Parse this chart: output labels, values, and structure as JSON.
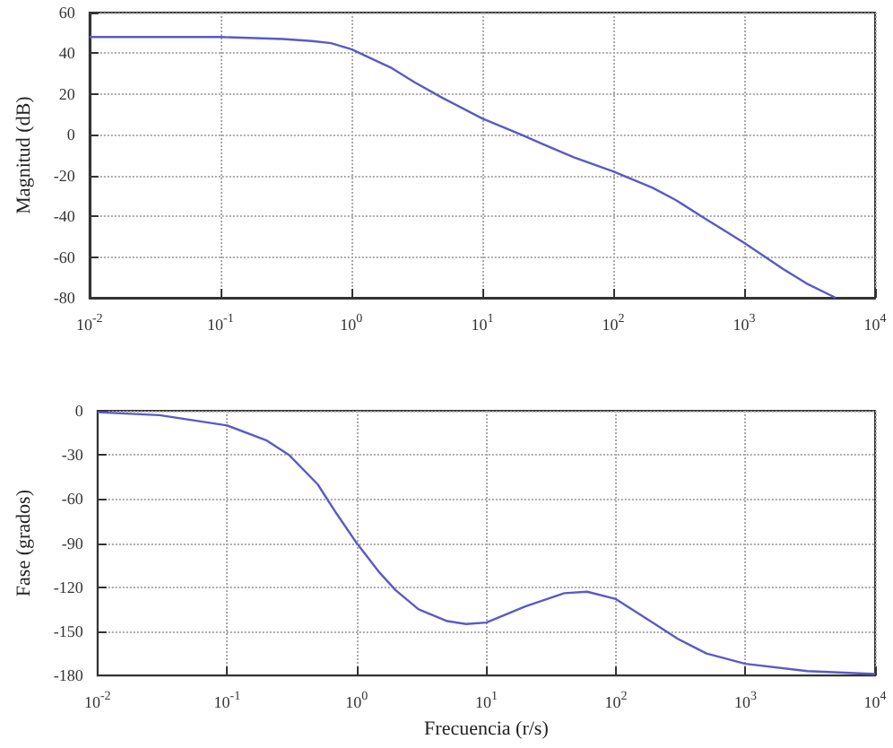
{
  "chart_data": [
    {
      "type": "line",
      "ylabel": "Magnitud (dB)",
      "log": "x",
      "grid": true,
      "marker": "none",
      "line_style": "solid",
      "xlim": [
        0.01,
        10000
      ],
      "ylim": [
        -80,
        60
      ],
      "xticks": [
        {
          "value": 0.01,
          "label": "10$^{-2}$"
        },
        {
          "value": 0.1,
          "label": "10$^{-1}$"
        },
        {
          "value": 1,
          "label": "10$^{0}$"
        },
        {
          "value": 10,
          "label": "10$^{1}$"
        },
        {
          "value": 100,
          "label": "10$^{2}$"
        },
        {
          "value": 1000,
          "label": "10$^{3}$"
        },
        {
          "value": 10000,
          "label": "10$^{4}$"
        }
      ],
      "yticks": [
        -80,
        -60,
        -40,
        -20,
        0,
        20,
        40,
        60
      ],
      "series": [
        {
          "color": "#5a5ac8",
          "x": [
            0.01,
            0.1,
            0.3,
            0.5,
            0.7,
            1,
            2,
            3,
            5,
            10,
            20,
            30,
            50,
            100,
            200,
            300,
            500,
            1000,
            2000,
            3000,
            5000
          ],
          "values": [
            48,
            48,
            47,
            46,
            45,
            42,
            33,
            26,
            18,
            8,
            0,
            -5,
            -11,
            -18,
            -26,
            -32,
            -41,
            -53,
            -66,
            -73,
            -80
          ]
        }
      ]
    },
    {
      "type": "line",
      "xlabel": "Frecuencia (r/s)",
      "ylabel": "Fase (grados)",
      "log": "x",
      "grid": true,
      "marker": "none",
      "line_style": "solid",
      "xlim": [
        0.01,
        10000
      ],
      "ylim": [
        -180,
        0
      ],
      "xticks": [
        {
          "value": 0.01,
          "label": "10$^{-2}$"
        },
        {
          "value": 0.1,
          "label": "10$^{-1}$"
        },
        {
          "value": 1,
          "label": "10$^{0}$"
        },
        {
          "value": 10,
          "label": "10$^{1}$"
        },
        {
          "value": 100,
          "label": "10$^{2}$"
        },
        {
          "value": 1000,
          "label": "10$^{3}$"
        },
        {
          "value": 10000,
          "label": "10$^{4}$"
        }
      ],
      "yticks": [
        -180,
        -150,
        -120,
        -90,
        -60,
        -30,
        0
      ],
      "series": [
        {
          "color": "#5a5ac8",
          "x": [
            0.01,
            0.03,
            0.1,
            0.2,
            0.3,
            0.5,
            0.7,
            1,
            1.5,
            2,
            3,
            5,
            7,
            10,
            20,
            40,
            60,
            100,
            200,
            300,
            500,
            1000,
            3000,
            10000
          ],
          "values": [
            -1,
            -3,
            -10,
            -20,
            -30,
            -50,
            -70,
            -90,
            -110,
            -122,
            -135,
            -143,
            -145,
            -144,
            -133,
            -124,
            -123,
            -128,
            -145,
            -155,
            -165,
            -172,
            -177,
            -179
          ]
        }
      ]
    }
  ]
}
